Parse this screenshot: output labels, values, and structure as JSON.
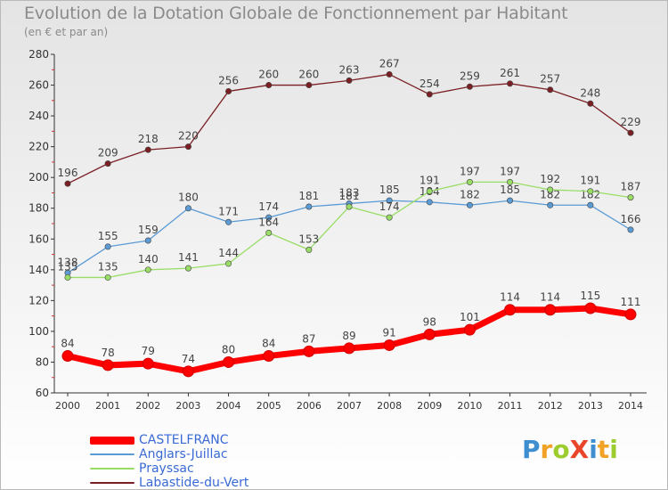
{
  "chart_data": {
    "type": "line",
    "title": "Evolution de la Dotation Globale de Fonctionnement par Habitant",
    "subtitle": "(en € et par an)",
    "categories": [
      "2000",
      "2001",
      "2002",
      "2003",
      "2004",
      "2005",
      "2006",
      "2007",
      "2008",
      "2009",
      "2010",
      "2011",
      "2012",
      "2013",
      "2014"
    ],
    "ylim": [
      60,
      280
    ],
    "yticks": [
      60,
      80,
      100,
      120,
      140,
      160,
      180,
      200,
      220,
      240,
      260,
      280
    ],
    "grid": false,
    "series": [
      {
        "name": "Labastide-du-Vert",
        "color": "#7a1f24",
        "values": [
          196,
          209,
          218,
          220,
          256,
          260,
          260,
          263,
          267,
          254,
          259,
          261,
          257,
          248,
          229
        ]
      },
      {
        "name": "Anglars-Juillac",
        "color": "#5b9bd5",
        "values": [
          138,
          155,
          159,
          180,
          171,
          174,
          181,
          183,
          185,
          184,
          182,
          185,
          182,
          182,
          166
        ]
      },
      {
        "name": "Prayssac",
        "color": "#99dd66",
        "values": [
          135,
          135,
          140,
          141,
          144,
          164,
          153,
          181,
          174,
          191,
          197,
          197,
          192,
          191,
          187
        ]
      },
      {
        "name": "CASTELFRANC",
        "color": "#ff0000",
        "values": [
          84,
          78,
          79,
          74,
          80,
          84,
          87,
          89,
          91,
          98,
          101,
          114,
          114,
          115,
          111
        ]
      }
    ],
    "legend": [
      "CASTELFRANC",
      "Anglars-Juillac",
      "Prayssac",
      "Labastide-du-Vert"
    ]
  },
  "logo": {
    "text": "ProXiti",
    "letters": [
      {
        "ch": "P",
        "color": "#3f8fd0"
      },
      {
        "ch": "r",
        "color": "#f2a227"
      },
      {
        "ch": "o",
        "color": "#9dcc2f"
      },
      {
        "ch": "X",
        "color": "#e8452b"
      },
      {
        "ch": "i",
        "color": "#3f8fd0"
      },
      {
        "ch": "t",
        "color": "#f2a227"
      },
      {
        "ch": "i",
        "color": "#9dcc2f"
      }
    ]
  }
}
